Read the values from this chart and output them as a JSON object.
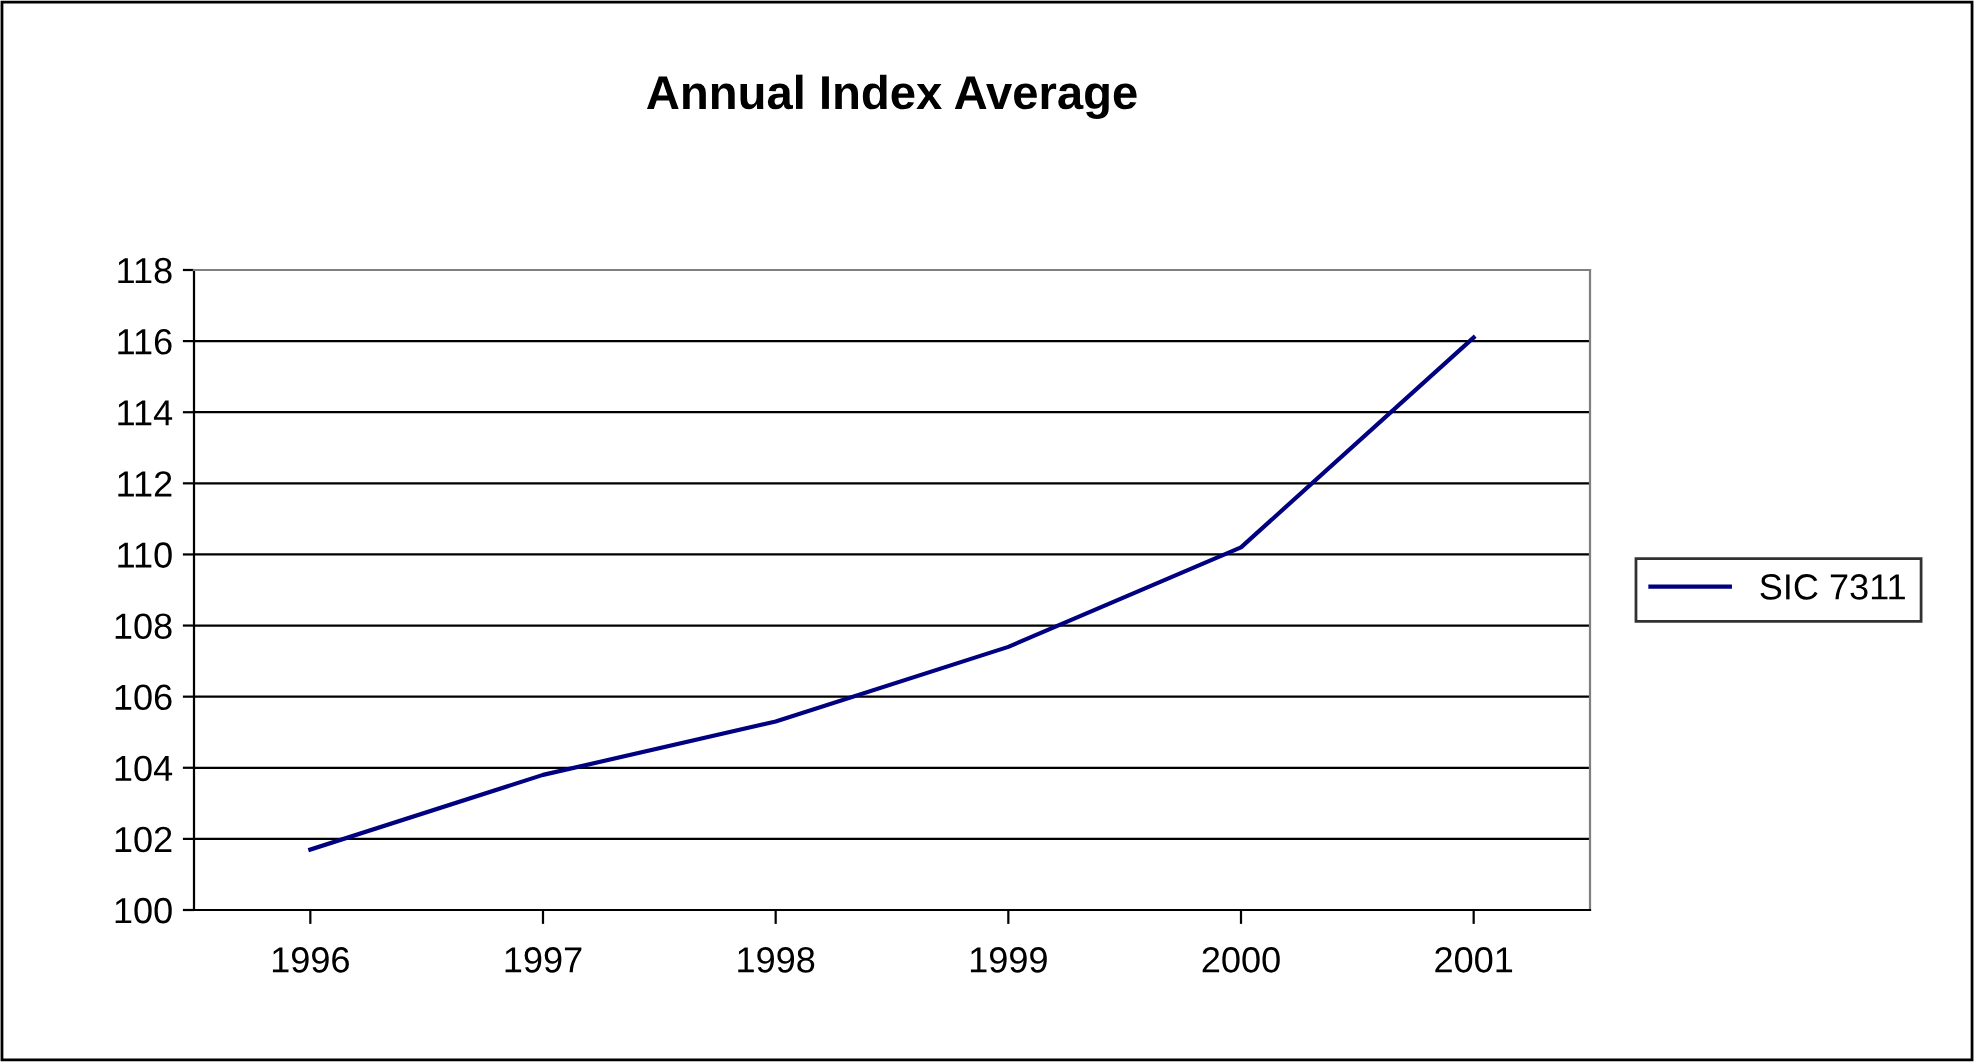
{
  "chart_data": {
    "type": "line",
    "title": "Annual Index Average",
    "categories": [
      "1996",
      "1997",
      "1998",
      "1999",
      "2000",
      "2001"
    ],
    "series": [
      {
        "name": "SIC 7311",
        "color": "#000080",
        "values": [
          101.7,
          103.8,
          105.3,
          107.4,
          110.2,
          116.1
        ]
      }
    ],
    "ylim": [
      100,
      118
    ],
    "yticks": [
      100,
      102,
      104,
      106,
      108,
      110,
      112,
      114,
      116,
      118
    ],
    "grid": "y",
    "legend": "right",
    "marker": "none",
    "line_style": "solid"
  }
}
